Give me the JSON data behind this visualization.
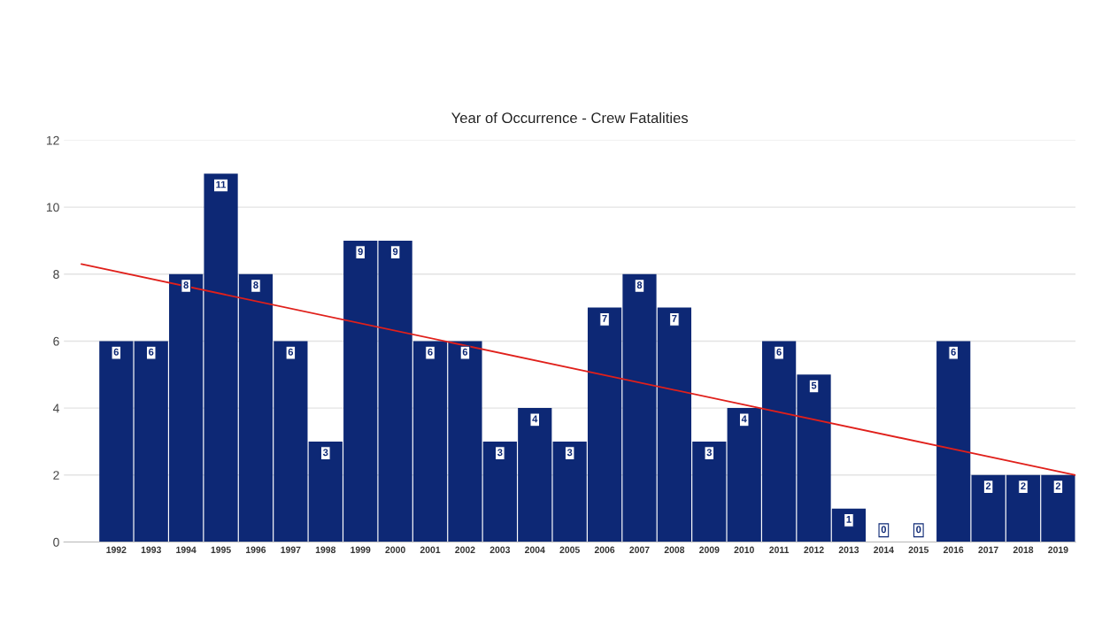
{
  "chart_data": {
    "type": "bar",
    "title": "Year of Occurrence - Crew Fatalities",
    "x": [
      1992,
      1993,
      1994,
      1995,
      1996,
      1997,
      1998,
      1999,
      2000,
      2001,
      2002,
      2003,
      2004,
      2005,
      2006,
      2007,
      2008,
      2009,
      2010,
      2011,
      2012,
      2013,
      2014,
      2015,
      2016,
      2017,
      2018,
      2019
    ],
    "series": [
      {
        "color": "#0d2875",
        "values": [
          6,
          6,
          8,
          11,
          8,
          6,
          3,
          9,
          9,
          6,
          6,
          3,
          4,
          3,
          7,
          8,
          7,
          3,
          4,
          6,
          5,
          1,
          0,
          0,
          6,
          2,
          2,
          2
        ],
        "value_labels": [
          "6",
          "6",
          "8",
          "11",
          "8",
          "6",
          "3",
          "9",
          "9",
          "6",
          "6",
          "3",
          "4",
          "3",
          "7",
          "8",
          "7",
          "3",
          "4",
          "6",
          "5",
          "1",
          "0",
          "0",
          "6",
          "2",
          "2",
          "2"
        ]
      },
      {
        "type": "line",
        "color": "#e0201b",
        "x": [
          1991,
          2019.5
        ],
        "values": [
          8.3,
          2.0
        ]
      }
    ],
    "xlim": [
      1990.5,
      2019.5
    ],
    "xticks": [
      1992,
      1993,
      1994,
      1995,
      1996,
      1997,
      1998,
      1999,
      2000,
      2001,
      2002,
      2003,
      2004,
      2005,
      2006,
      2007,
      2008,
      2009,
      2010,
      2011,
      2012,
      2013,
      2014,
      2015,
      2016,
      2017,
      2018,
      2019
    ],
    "ylim": [
      0,
      12
    ],
    "yticks": [
      0,
      2,
      4,
      6,
      8,
      10,
      12
    ],
    "grid": "y",
    "legend": false
  }
}
